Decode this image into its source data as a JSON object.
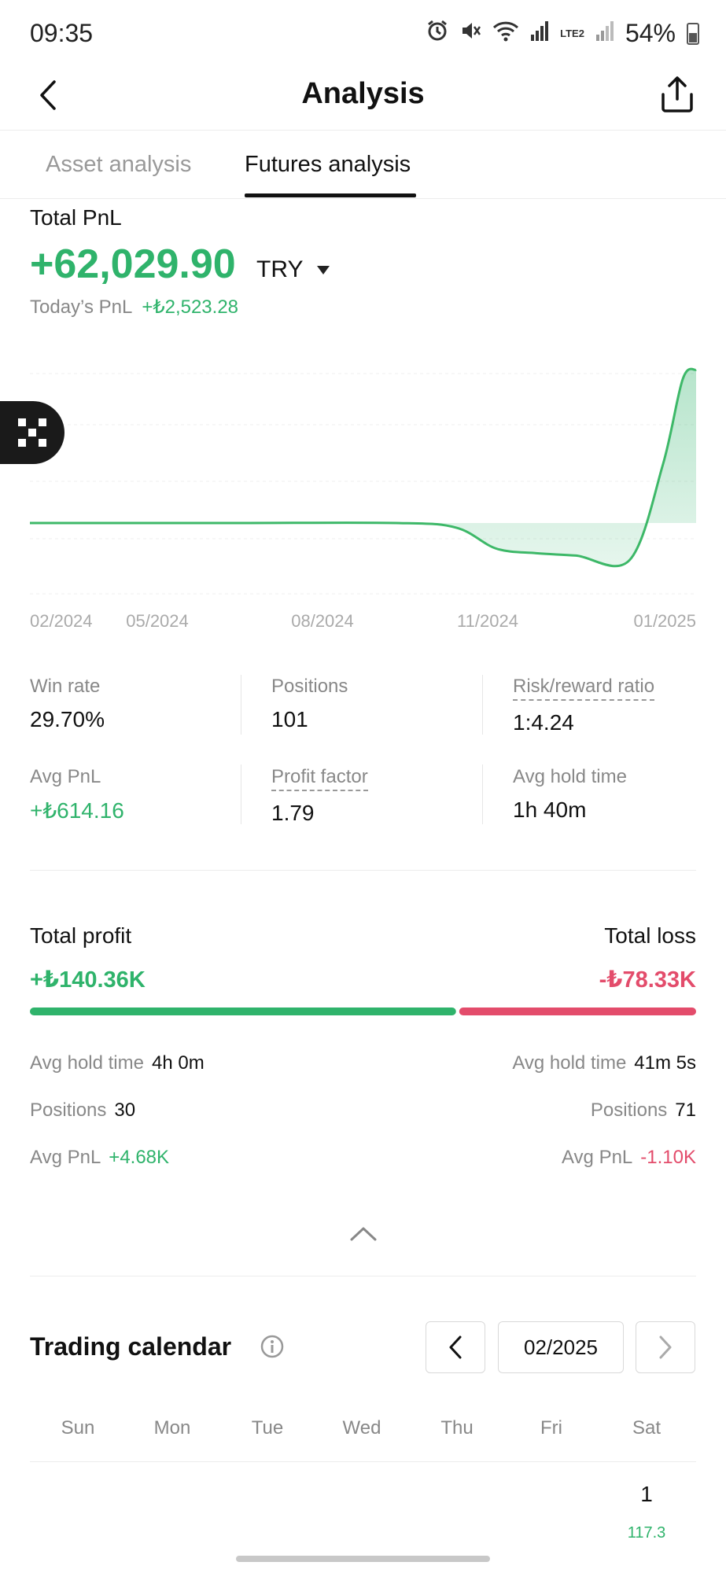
{
  "status_bar": {
    "time": "09:35",
    "battery": "54%",
    "network": "LTE2"
  },
  "header": {
    "title": "Analysis"
  },
  "tabs": [
    {
      "label": "Asset analysis",
      "active": false
    },
    {
      "label": "Futures analysis",
      "active": true
    }
  ],
  "pnl": {
    "label": "Total PnL",
    "value": "+62,029.90",
    "currency": "TRY",
    "today_label": "Today’s PnL",
    "today_value": "+₺2,523.28"
  },
  "chart_data": {
    "type": "area",
    "x_ticks": [
      "02/2024",
      "05/2024",
      "08/2024",
      "11/2024",
      "01/2025"
    ],
    "baseline": 0,
    "x": [
      0,
      0.3,
      0.55,
      0.64,
      0.7,
      0.76,
      0.82,
      0.9,
      0.95,
      0.98,
      1.0
    ],
    "y": [
      0,
      0,
      0,
      -2,
      -11,
      -13,
      -14,
      -16,
      25,
      62,
      66
    ],
    "grid": true,
    "colors": {
      "line": "#3db868",
      "fill": "#2fb36b"
    }
  },
  "stats": [
    {
      "label": "Win rate",
      "value": "29.70%",
      "dashed": false,
      "green": false
    },
    {
      "label": "Positions",
      "value": "101",
      "dashed": false,
      "green": false
    },
    {
      "label": "Risk/reward ratio",
      "value": "1:4.24",
      "dashed": true,
      "green": false
    },
    {
      "label": "Avg PnL",
      "value": "+₺614.16",
      "dashed": false,
      "green": true
    },
    {
      "label": "Profit factor",
      "value": "1.79",
      "dashed": true,
      "green": false
    },
    {
      "label": "Avg hold time",
      "value": "1h 40m",
      "dashed": false,
      "green": false
    }
  ],
  "profit_loss": {
    "profit_title": "Total profit",
    "profit_value": "+₺140.36K",
    "loss_title": "Total loss",
    "loss_value": "-₺78.33K",
    "profit_share": 0.642,
    "colors": {
      "profit": "#2fb36b",
      "loss": "#e34c6b"
    },
    "profit_rows": [
      {
        "label": "Avg hold time",
        "value": "4h 0m"
      },
      {
        "label": "Positions",
        "value": "30"
      },
      {
        "label": "Avg PnL",
        "value": "+4.68K"
      }
    ],
    "loss_rows": [
      {
        "label": "Avg hold time",
        "value": "41m 5s"
      },
      {
        "label": "Positions",
        "value": "71"
      },
      {
        "label": "Avg PnL",
        "value": "-1.10K"
      }
    ]
  },
  "calendar": {
    "title": "Trading calendar",
    "month": "02/2025",
    "weekdays": [
      "Sun",
      "Mon",
      "Tue",
      "Wed",
      "Thu",
      "Fri",
      "Sat"
    ],
    "days": [
      {
        "day": "1",
        "weekday_index": 6,
        "pnl": "117.3"
      }
    ]
  },
  "icons": {
    "back": "chevron-left-icon",
    "share": "share-icon",
    "float": "qr-icon",
    "collapse": "chevron-up-icon",
    "info": "info-icon"
  }
}
